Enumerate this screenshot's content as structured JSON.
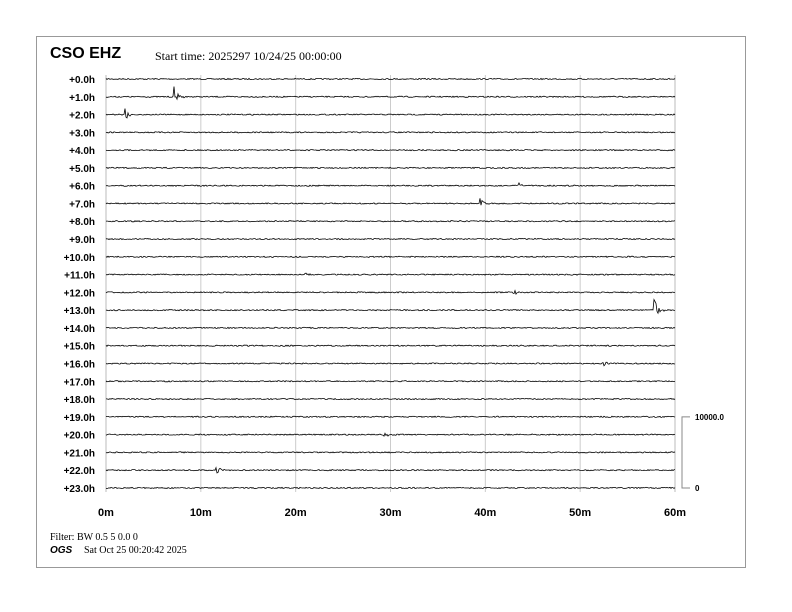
{
  "header": {
    "station": "CSO EHZ",
    "start_time": "Start time: 2025297 10/24/25 00:00:00"
  },
  "footer": {
    "filter": "Filter: BW 0.5 5 0.0 0",
    "org": "OGS",
    "timestamp": "Sat Oct 25 00:20:42 2025"
  },
  "chart_data": {
    "type": "line",
    "subtype": "helicorder",
    "row_labels": [
      "+0.0h",
      "+1.0h",
      "+2.0h",
      "+3.0h",
      "+4.0h",
      "+5.0h",
      "+6.0h",
      "+7.0h",
      "+8.0h",
      "+9.0h",
      "+10.0h",
      "+11.0h",
      "+12.0h",
      "+13.0h",
      "+14.0h",
      "+15.0h",
      "+16.0h",
      "+17.0h",
      "+18.0h",
      "+19.0h",
      "+20.0h",
      "+21.0h",
      "+22.0h",
      "+23.0h"
    ],
    "x_ticks": [
      "0m",
      "10m",
      "20m",
      "30m",
      "40m",
      "50m",
      "60m"
    ],
    "xlim": [
      0,
      60
    ],
    "grid": true,
    "scale_bar": {
      "top_label": "10000.0",
      "bottom_label": "0"
    },
    "trace_color": "#000000",
    "grid_color": "#cccccc",
    "events": [
      {
        "row": 1,
        "minute": 7.2,
        "amplitude": 0.6
      },
      {
        "row": 2,
        "minute": 2.0,
        "amplitude": 0.4
      },
      {
        "row": 6,
        "minute": 43.5,
        "amplitude": 0.15
      },
      {
        "row": 7,
        "minute": 39.5,
        "amplitude": 0.3
      },
      {
        "row": 11,
        "minute": 21.0,
        "amplitude": 0.15
      },
      {
        "row": 12,
        "minute": 43.0,
        "amplitude": 0.2
      },
      {
        "row": 13,
        "minute": 57.8,
        "amplitude": 1.0
      },
      {
        "row": 16,
        "minute": 52.5,
        "amplitude": 0.15
      },
      {
        "row": 20,
        "minute": 29.4,
        "amplitude": 0.3
      },
      {
        "row": 22,
        "minute": 11.6,
        "amplitude": 0.3
      }
    ]
  }
}
